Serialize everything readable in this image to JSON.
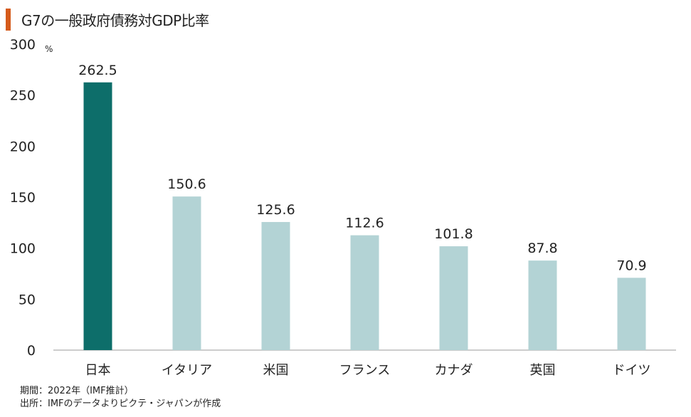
{
  "title": "G7の一般政府債務対GDP比率",
  "colors": {
    "title_bar": "#d55b1b",
    "highlight": "#0d6e6a",
    "bar": "#b3d3d5",
    "axis": "#999999"
  },
  "notes": {
    "period": "期間：2022年（IMF推計）",
    "source": "出所：IMFのデータよりピクテ・ジャパンが作成"
  },
  "chart_data": {
    "type": "bar",
    "title": "G7の一般政府債務対GDP比率",
    "categories": [
      "日本",
      "イタリア",
      "米国",
      "フランス",
      "カナダ",
      "英国",
      "ドイツ"
    ],
    "values": [
      262.5,
      150.6,
      125.6,
      112.6,
      101.8,
      87.8,
      70.9
    ],
    "value_labels": [
      "262.5",
      "150.6",
      "125.6",
      "112.6",
      "101.8",
      "87.8",
      "70.9"
    ],
    "highlight_index": 0,
    "yticks": [
      0,
      50,
      100,
      150,
      200,
      250,
      300
    ],
    "ylim": [
      0,
      300
    ],
    "yunit": "%",
    "xlabel": "",
    "ylabel": "",
    "grid": false,
    "legend": "none"
  }
}
